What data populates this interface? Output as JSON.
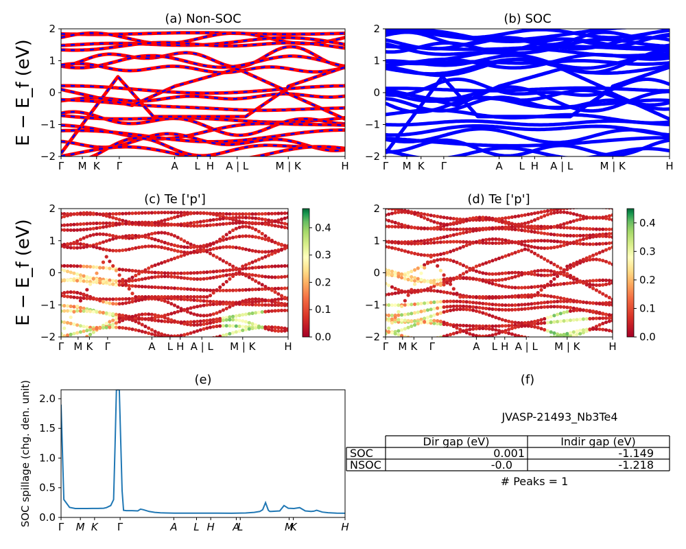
{
  "chart_data": [
    {
      "type": "line",
      "title": "(a) Non-SOC",
      "ylabel": "E − E_f (eV)",
      "ylim": [
        -2,
        2
      ],
      "yticks": [
        "2",
        "1",
        "0",
        "−1",
        "−2"
      ],
      "kpath_labels": [
        "Γ",
        "M",
        "K",
        "Γ",
        "A",
        "L",
        "H",
        "A | L",
        "M | K",
        "H"
      ],
      "kpath_positions": [
        0.0,
        0.075,
        0.125,
        0.205,
        0.4,
        0.48,
        0.525,
        0.62,
        0.8,
        1.0
      ],
      "colors": [
        "#ff0000",
        "#0000ff"
      ]
    },
    {
      "type": "line",
      "title": "(b) SOC",
      "ylim": [
        -2,
        2
      ],
      "yticks": [
        "2",
        "1",
        "0",
        "−1",
        "−2"
      ],
      "kpath_labels": [
        "Γ",
        "M",
        "K",
        "Γ",
        "A",
        "L",
        "H",
        "A | L",
        "M | K",
        "H"
      ],
      "kpath_positions": [
        0.0,
        0.075,
        0.125,
        0.205,
        0.4,
        0.48,
        0.525,
        0.62,
        0.8,
        1.0
      ],
      "colors": [
        "#0000ff"
      ]
    },
    {
      "type": "scatter",
      "title": "(c)  Te ['p']",
      "ylabel": "E − E_f (eV)",
      "ylim": [
        -2,
        2
      ],
      "yticks": [
        "2",
        "1",
        "0",
        "−1",
        "−2"
      ],
      "kpath_labels": [
        "Γ",
        "M",
        "K",
        "Γ",
        "A",
        "L",
        "H",
        "A | L",
        "M | K",
        "H"
      ],
      "kpath_positions": [
        0.0,
        0.075,
        0.125,
        0.205,
        0.4,
        0.48,
        0.525,
        0.62,
        0.8,
        1.0
      ],
      "colorbar": {
        "ticks": [
          "0.0",
          "0.1",
          "0.2",
          "0.3",
          "0.4"
        ],
        "values": [
          0.0,
          0.1,
          0.2,
          0.3,
          0.4
        ],
        "max": 0.47,
        "colormap": "RdYlGn"
      }
    },
    {
      "type": "scatter",
      "title": "(d) Te ['p']",
      "ylim": [
        -2,
        2
      ],
      "yticks": [
        "2",
        "1",
        "0",
        "−1",
        "−2"
      ],
      "kpath_labels": [
        "Γ",
        "M",
        "K",
        "Γ",
        "A",
        "L",
        "H",
        "A | L",
        "M | K",
        "H"
      ],
      "kpath_positions": [
        0.0,
        0.075,
        0.125,
        0.205,
        0.4,
        0.48,
        0.525,
        0.62,
        0.8,
        1.0
      ],
      "colorbar": {
        "ticks": [
          "0.0",
          "0.1",
          "0.2",
          "0.3",
          "0.4"
        ],
        "values": [
          0.0,
          0.1,
          0.2,
          0.3,
          0.4
        ],
        "max": 0.45,
        "colormap": "RdYlGn"
      }
    },
    {
      "type": "line",
      "title": "(e)",
      "ylabel": "SOC spillage (chg. den. unit)",
      "ylim": [
        0,
        2.15
      ],
      "yticks": [
        "0.0",
        "0.5",
        "1.0",
        "1.5",
        "2.0"
      ],
      "ytick_values": [
        0.0,
        0.5,
        1.0,
        1.5,
        2.0
      ],
      "kpath_labels": [
        "Γ",
        "M",
        "K",
        "Γ",
        "A",
        "L",
        "H",
        "A",
        "L",
        "M",
        "K",
        "H"
      ],
      "kpath_positions": [
        0.0,
        0.068,
        0.118,
        0.208,
        0.397,
        0.477,
        0.527,
        0.617,
        0.631,
        0.803,
        0.818,
        1.0
      ],
      "color": "#1f77b4",
      "x": [
        0.0,
        0.01,
        0.03,
        0.05,
        0.07,
        0.09,
        0.11,
        0.13,
        0.15,
        0.16,
        0.175,
        0.185,
        0.19,
        0.195,
        0.205,
        0.215,
        0.22,
        0.23,
        0.25,
        0.27,
        0.28,
        0.29,
        0.31,
        0.33,
        0.35,
        0.37,
        0.4,
        0.45,
        0.5,
        0.55,
        0.6,
        0.65,
        0.68,
        0.7,
        0.71,
        0.72,
        0.73,
        0.735,
        0.74,
        0.77,
        0.785,
        0.8,
        0.82,
        0.84,
        0.86,
        0.87,
        0.88,
        0.89,
        0.9,
        0.92,
        0.94,
        0.97,
        1.0
      ],
      "values": [
        1.9,
        0.3,
        0.17,
        0.15,
        0.15,
        0.15,
        0.152,
        0.152,
        0.155,
        0.165,
        0.2,
        0.3,
        1.2,
        2.15,
        2.15,
        0.45,
        0.12,
        0.115,
        0.115,
        0.11,
        0.14,
        0.13,
        0.1,
        0.085,
        0.078,
        0.075,
        0.073,
        0.072,
        0.072,
        0.072,
        0.071,
        0.075,
        0.085,
        0.1,
        0.13,
        0.25,
        0.12,
        0.1,
        0.1,
        0.11,
        0.2,
        0.155,
        0.15,
        0.165,
        0.11,
        0.105,
        0.1,
        0.105,
        0.12,
        0.09,
        0.08,
        0.072,
        0.07
      ]
    },
    {
      "type": "table",
      "title": "(f)",
      "caption": "JVASP-21493_Nb3Te4",
      "columns": [
        "",
        "Dir gap (eV)",
        "Indir gap (eV)"
      ],
      "rows": [
        [
          "SOC",
          "0.001",
          "-1.149"
        ],
        [
          "NSOC",
          "-0.0",
          "-1.218"
        ]
      ],
      "footer": "# Peaks = 1"
    }
  ]
}
